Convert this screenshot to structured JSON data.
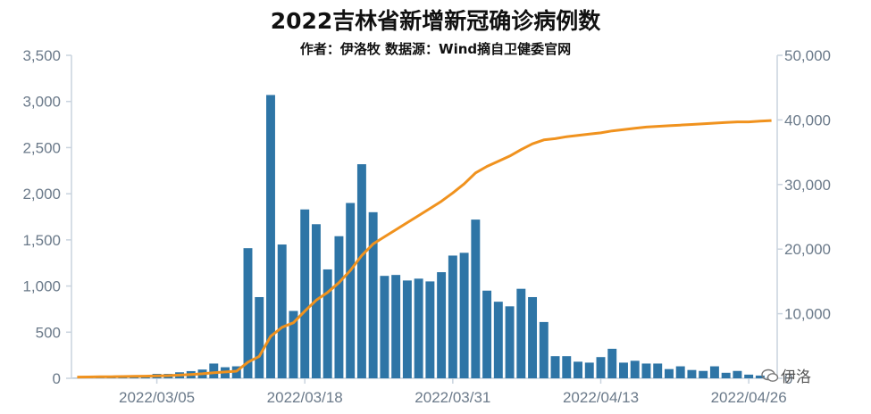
{
  "chart_data": {
    "type": "bar+line",
    "title": "2022吉林省新增新冠确诊病例数",
    "subtitle": "作者：伊洛牧 数据源：Wind摘自卫健委官网",
    "watermark": "伊洛",
    "colors": {
      "bar": "#2e75a6",
      "line": "#f0921e",
      "axis": "#c9d3de",
      "tick_text": "#6b7a8a"
    },
    "left_axis": {
      "ylim": [
        0,
        3500
      ],
      "ticks": [
        "0",
        "500",
        "1,000",
        "1,500",
        "2,000",
        "2,500",
        "3,000",
        "3,500"
      ],
      "tick_values": [
        0,
        500,
        1000,
        1500,
        2000,
        2500,
        3000,
        3500
      ]
    },
    "right_axis": {
      "ylim": [
        0,
        50000
      ],
      "ticks": [
        "0",
        "10,000",
        "20,000",
        "30,000",
        "40,000",
        "50,000"
      ],
      "tick_values": [
        0,
        10000,
        20000,
        30000,
        40000,
        50000
      ]
    },
    "x_tick_labels": [
      "2022/03/05",
      "2022/03/18",
      "2022/03/31",
      "2022/04/13",
      "2022/04/26"
    ],
    "x_tick_index": [
      7,
      20,
      33,
      46,
      59
    ],
    "series": [
      {
        "kind": "bar",
        "axis": "left",
        "values": [
          2,
          3,
          4,
          7,
          10,
          15,
          28,
          48,
          48,
          65,
          78,
          95,
          160,
          120,
          130,
          1410,
          880,
          3070,
          1450,
          730,
          1830,
          1670,
          1180,
          1540,
          1900,
          2320,
          1800,
          1110,
          1120,
          1060,
          1080,
          1050,
          1150,
          1330,
          1360,
          1720,
          950,
          830,
          780,
          970,
          880,
          610,
          240,
          240,
          180,
          170,
          230,
          320,
          170,
          190,
          160,
          160,
          100,
          130,
          90,
          80,
          130,
          60,
          80,
          40,
          30,
          10
        ]
      },
      {
        "kind": "line",
        "axis": "right",
        "values": [
          200,
          210,
          230,
          250,
          280,
          300,
          330,
          380,
          420,
          500,
          600,
          700,
          860,
          980,
          1100,
          2500,
          3400,
          6500,
          7900,
          8600,
          10400,
          12100,
          13300,
          14800,
          16700,
          19000,
          20800,
          21900,
          23000,
          24100,
          25200,
          26300,
          27400,
          28700,
          30100,
          31800,
          32800,
          33600,
          34400,
          35400,
          36300,
          36900,
          37100,
          37400,
          37600,
          37800,
          38000,
          38300,
          38500,
          38700,
          38900,
          39000,
          39100,
          39200,
          39300,
          39400,
          39500,
          39600,
          39700,
          39700,
          39800,
          39900
        ]
      }
    ]
  }
}
